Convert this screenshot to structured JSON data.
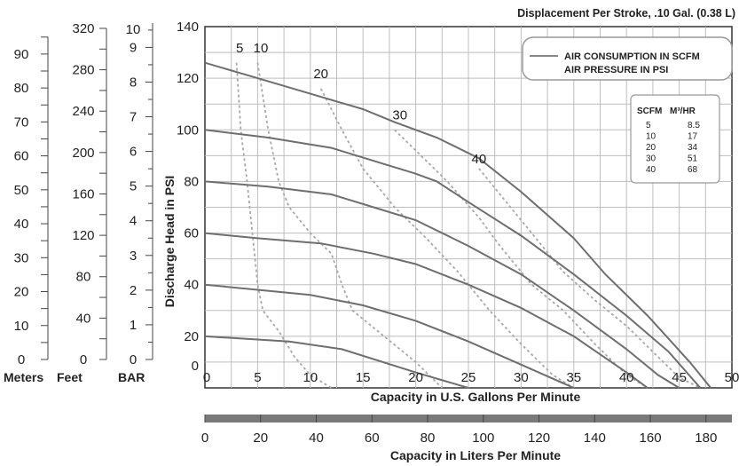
{
  "chart_data": {
    "type": "line",
    "title": "Displacement Per Stroke, .10 Gal. (0.38 L)",
    "xlabel": "Capacity in U.S. Gallons Per Minute",
    "ylabel": "Discharge Head in PSI",
    "x2label": "Capacity in Liters Per Minute",
    "xlim": [
      0,
      50
    ],
    "ylim": [
      0,
      140
    ],
    "grid": true,
    "x_ticks": [
      "0",
      "5",
      "10",
      "15",
      "20",
      "25",
      "30",
      "35",
      "40",
      "45",
      "50"
    ],
    "y_ticks": [
      "0",
      "20",
      "40",
      "60",
      "80",
      "100",
      "120",
      "140"
    ],
    "liters_ticks": [
      "0",
      "20",
      "40",
      "60",
      "80",
      "100",
      "120",
      "140",
      "160",
      "180"
    ],
    "meters_ticks": [
      "0",
      "10",
      "20",
      "30",
      "40",
      "50",
      "60",
      "70",
      "80",
      "90"
    ],
    "feet_ticks": [
      "0",
      "40",
      "80",
      "120",
      "160",
      "200",
      "240",
      "280",
      "320"
    ],
    "bar_ticks": [
      "0",
      "1",
      "2",
      "3",
      "4",
      "5",
      "6",
      "7",
      "8",
      "9",
      "10"
    ],
    "meters_label": "Meters",
    "feet_label": "Feet",
    "bar_label": "BAR",
    "legend": {
      "solid_label": "AIR CONSUMPTION IN SCFM",
      "dotted_label": "AIR PRESSURE IN PSI",
      "placement": "top-right"
    },
    "scfm_table": {
      "headers": [
        "SCFM",
        "M³/HR"
      ],
      "rows": [
        [
          "5",
          "8.5"
        ],
        [
          "10",
          "17"
        ],
        [
          "20",
          "34"
        ],
        [
          "30",
          "51"
        ],
        [
          "40",
          "68"
        ]
      ]
    },
    "pressure_curves": [
      {
        "label": "20",
        "points": [
          [
            0,
            20
          ],
          [
            8,
            18
          ],
          [
            13,
            15
          ],
          [
            20,
            6
          ],
          [
            25,
            0
          ]
        ]
      },
      {
        "label": "40",
        "points": [
          [
            0,
            40
          ],
          [
            5,
            38
          ],
          [
            10,
            36
          ],
          [
            15,
            32
          ],
          [
            20,
            26
          ],
          [
            25,
            18
          ],
          [
            30,
            9
          ],
          [
            35,
            0
          ]
        ]
      },
      {
        "label": "60",
        "points": [
          [
            0,
            60
          ],
          [
            5,
            58
          ],
          [
            11,
            56
          ],
          [
            16,
            52
          ],
          [
            20,
            48
          ],
          [
            25,
            40
          ],
          [
            30,
            31
          ],
          [
            35,
            20
          ],
          [
            40,
            6
          ],
          [
            42,
            0
          ]
        ]
      },
      {
        "label": "80",
        "points": [
          [
            0,
            80
          ],
          [
            6,
            78
          ],
          [
            12,
            75
          ],
          [
            16,
            70
          ],
          [
            20,
            65
          ],
          [
            25,
            55
          ],
          [
            30,
            44
          ],
          [
            35,
            30
          ],
          [
            40,
            15
          ],
          [
            43,
            5
          ],
          [
            45,
            0
          ]
        ]
      },
      {
        "label": "100",
        "points": [
          [
            0,
            100
          ],
          [
            6,
            97
          ],
          [
            12,
            93
          ],
          [
            16,
            88
          ],
          [
            20,
            83
          ],
          [
            22,
            80
          ],
          [
            25,
            72
          ],
          [
            30,
            59
          ],
          [
            35,
            44
          ],
          [
            40,
            28
          ],
          [
            44,
            14
          ],
          [
            47,
            0
          ]
        ]
      },
      {
        "label": "120",
        "points": [
          [
            0,
            126
          ],
          [
            5,
            120
          ],
          [
            10,
            114
          ],
          [
            15,
            108
          ],
          [
            18,
            103
          ],
          [
            22,
            97
          ],
          [
            26,
            89
          ],
          [
            30,
            76
          ],
          [
            35,
            58
          ],
          [
            38,
            44
          ],
          [
            42,
            28
          ],
          [
            46,
            10
          ],
          [
            48,
            0
          ]
        ]
      }
    ],
    "air_curves": [
      {
        "label": "5",
        "points": [
          [
            3,
            126
          ],
          [
            3.4,
            100
          ],
          [
            4,
            80
          ],
          [
            4.5,
            60
          ],
          [
            5,
            40
          ],
          [
            5.5,
            30
          ],
          [
            7,
            22
          ],
          [
            8.5,
            12
          ],
          [
            10,
            5
          ],
          [
            12,
            0
          ]
        ]
      },
      {
        "label": "10",
        "points": [
          [
            5,
            126
          ],
          [
            6,
            100
          ],
          [
            7,
            80
          ],
          [
            8,
            70
          ],
          [
            10,
            60
          ],
          [
            12,
            52
          ],
          [
            13,
            40
          ],
          [
            14,
            30
          ],
          [
            17,
            20
          ],
          [
            20,
            10
          ],
          [
            22.5,
            0
          ]
        ]
      },
      {
        "label": "20",
        "points": [
          [
            11,
            116
          ],
          [
            13,
            100
          ],
          [
            15,
            85
          ],
          [
            18,
            70
          ],
          [
            21,
            58
          ],
          [
            24,
            45
          ],
          [
            27,
            30
          ],
          [
            30,
            17
          ],
          [
            33,
            5
          ],
          [
            35,
            0
          ]
        ]
      },
      {
        "label": "30",
        "points": [
          [
            18,
            100
          ],
          [
            20,
            92
          ],
          [
            23,
            80
          ],
          [
            26,
            66
          ],
          [
            28,
            55
          ],
          [
            31,
            40
          ],
          [
            34,
            30
          ],
          [
            37,
            17
          ],
          [
            40,
            5
          ],
          [
            42,
            0
          ]
        ]
      },
      {
        "label": "40",
        "points": [
          [
            26,
            85
          ],
          [
            28,
            75
          ],
          [
            31,
            60
          ],
          [
            34,
            45
          ],
          [
            37,
            34
          ],
          [
            40,
            24
          ],
          [
            43,
            12
          ],
          [
            45,
            4
          ],
          [
            47,
            0
          ]
        ]
      }
    ],
    "air_curve_labels": [
      {
        "text": "5",
        "x": 3.3,
        "y": 130
      },
      {
        "text": "10",
        "x": 5.3,
        "y": 130
      },
      {
        "text": "20",
        "x": 11,
        "y": 120
      },
      {
        "text": "30",
        "x": 18.5,
        "y": 104
      },
      {
        "text": "40",
        "x": 26,
        "y": 87
      }
    ]
  }
}
